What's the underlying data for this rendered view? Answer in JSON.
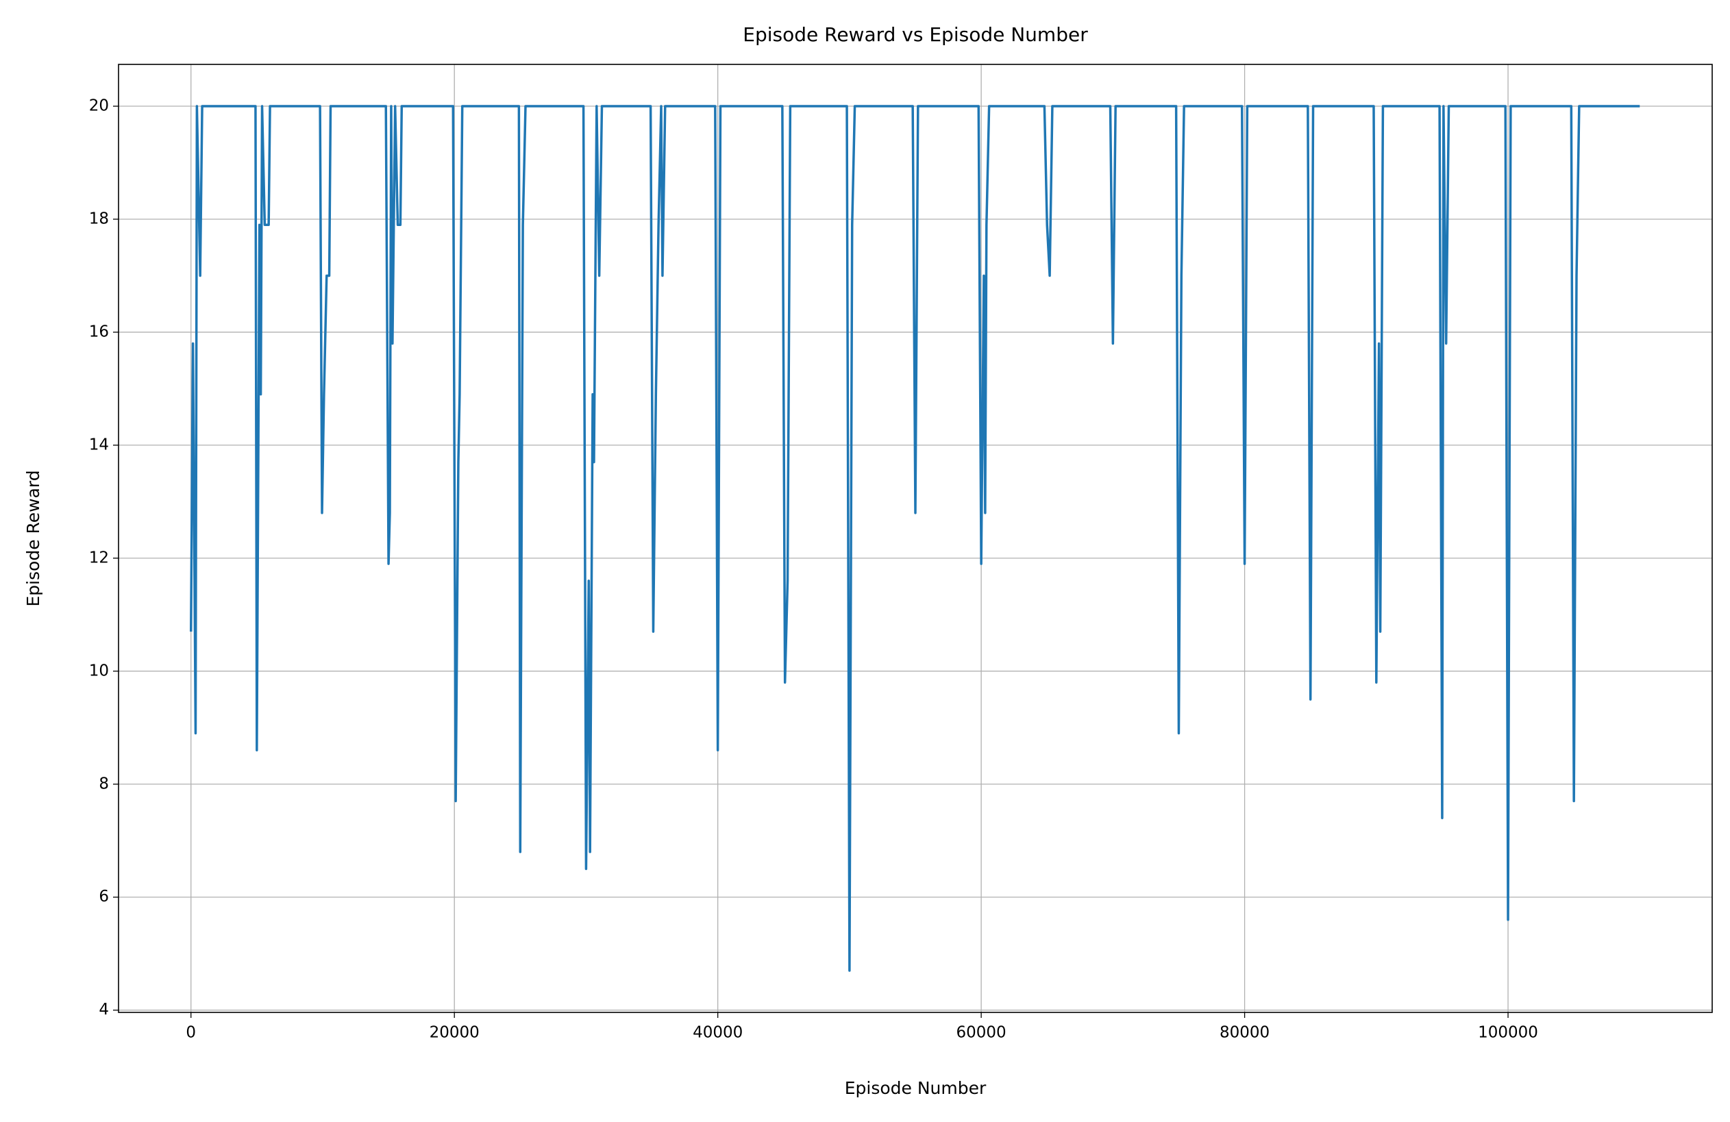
{
  "chart_data": {
    "type": "line",
    "title": "Episode Reward vs Episode Number",
    "x_label": "Episode Number",
    "y_label": "Episode Reward",
    "grid": true,
    "xlim": [
      -5500,
      115500
    ],
    "ylim": [
      3.96,
      20.74
    ],
    "xticks": [
      0,
      20000,
      40000,
      60000,
      80000,
      100000
    ],
    "yticks": [
      4,
      6,
      8,
      10,
      12,
      14,
      16,
      18,
      20
    ],
    "x": [
      0,
      150,
      350,
      450,
      700,
      850,
      4900,
      5000,
      5200,
      5300,
      5400,
      5600,
      5900,
      6000,
      9800,
      9950,
      10100,
      10300,
      10500,
      10600,
      14800,
      15000,
      15100,
      15200,
      15300,
      15500,
      15700,
      15900,
      16000,
      19900,
      20100,
      20300,
      20400,
      20600,
      24900,
      25000,
      25200,
      25400,
      29800,
      30000,
      30200,
      30300,
      30500,
      30600,
      30800,
      31000,
      31200,
      34900,
      35100,
      35300,
      35500,
      35700,
      35800,
      36000,
      39800,
      40000,
      40200,
      44900,
      45100,
      45300,
      45500,
      49800,
      50000,
      50200,
      50400,
      54800,
      55000,
      55200,
      59800,
      60000,
      60200,
      60300,
      60400,
      60600,
      64800,
      65000,
      65200,
      65400,
      69800,
      70000,
      70200,
      74800,
      75000,
      75200,
      75400,
      79800,
      80000,
      80200,
      84800,
      85000,
      85200,
      89800,
      90000,
      90200,
      90300,
      90500,
      94800,
      95000,
      95100,
      95300,
      95500,
      99800,
      100000,
      100200,
      104800,
      105000,
      105200,
      105400,
      105600,
      110000
    ],
    "series": [
      {
        "name": "Episode Reward",
        "color": "#1f77b4",
        "values": [
          10.7,
          15.8,
          8.9,
          20,
          17,
          20,
          20,
          8.6,
          17.9,
          14.9,
          20,
          17.9,
          17.9,
          20,
          20,
          12.8,
          14.9,
          17,
          17,
          20,
          20,
          11.9,
          12.8,
          20,
          15.8,
          20,
          17.9,
          17.9,
          20,
          20,
          7.7,
          13.7,
          14.9,
          20,
          20,
          6.8,
          17.9,
          20,
          20,
          6.5,
          11.6,
          6.8,
          14.9,
          13.7,
          20,
          17,
          20,
          20,
          10.7,
          14.9,
          17.9,
          20,
          17,
          20,
          20,
          8.6,
          20,
          20,
          9.8,
          11.6,
          20,
          20,
          4.7,
          17.9,
          20,
          20,
          12.8,
          20,
          20,
          11.9,
          17,
          12.8,
          17.9,
          20,
          20,
          17.9,
          17,
          20,
          20,
          15.8,
          20,
          20,
          8.9,
          17,
          20,
          20,
          11.9,
          20,
          20,
          9.5,
          20,
          20,
          9.8,
          15.8,
          10.7,
          20,
          20,
          7.4,
          20,
          15.8,
          20,
          20,
          5.6,
          20,
          20,
          7.7,
          17,
          20,
          20,
          20
        ]
      }
    ]
  }
}
